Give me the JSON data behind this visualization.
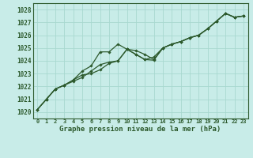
{
  "title": "Graphe pression niveau de la mer (hPa)",
  "bg_color": "#c8ece8",
  "grid_color": "#a8d8d0",
  "line_color": "#2d5a2d",
  "marker_color": "#2d5a2d",
  "xlim": [
    -0.5,
    23.5
  ],
  "ylim": [
    1019.5,
    1028.5
  ],
  "yticks": [
    1020,
    1021,
    1022,
    1023,
    1024,
    1025,
    1026,
    1027,
    1028
  ],
  "xtick_labels": [
    "0",
    "1",
    "2",
    "3",
    "4",
    "5",
    "6",
    "7",
    "8",
    "9",
    "10",
    "11",
    "12",
    "13",
    "14",
    "15",
    "16",
    "17",
    "18",
    "19",
    "20",
    "21",
    "22",
    "23"
  ],
  "series1": [
    1020.2,
    1021.0,
    1021.8,
    1022.1,
    1022.5,
    1023.2,
    1023.6,
    1024.7,
    1024.7,
    1025.3,
    1024.9,
    1024.8,
    1024.5,
    1024.1,
    1025.0,
    1025.3,
    1025.5,
    1025.8,
    1026.0,
    1026.5,
    1027.1,
    1027.7,
    1027.4,
    1027.5
  ],
  "series2": [
    1020.2,
    1021.0,
    1021.8,
    1022.1,
    1022.4,
    1022.7,
    1023.2,
    1023.7,
    1023.9,
    1024.0,
    1024.9,
    1024.5,
    1024.1,
    1024.05,
    1025.0,
    1025.3,
    1025.5,
    1025.8,
    1026.0,
    1026.5,
    1027.1,
    1027.7,
    1027.4,
    1027.5
  ],
  "series3": [
    1020.2,
    1021.0,
    1021.8,
    1022.1,
    1022.5,
    1022.9,
    1023.0,
    1023.3,
    1023.8,
    1024.0,
    1024.9,
    1024.5,
    1024.1,
    1024.3,
    1025.0,
    1025.3,
    1025.5,
    1025.8,
    1026.0,
    1026.5,
    1027.1,
    1027.7,
    1027.4,
    1027.5
  ]
}
